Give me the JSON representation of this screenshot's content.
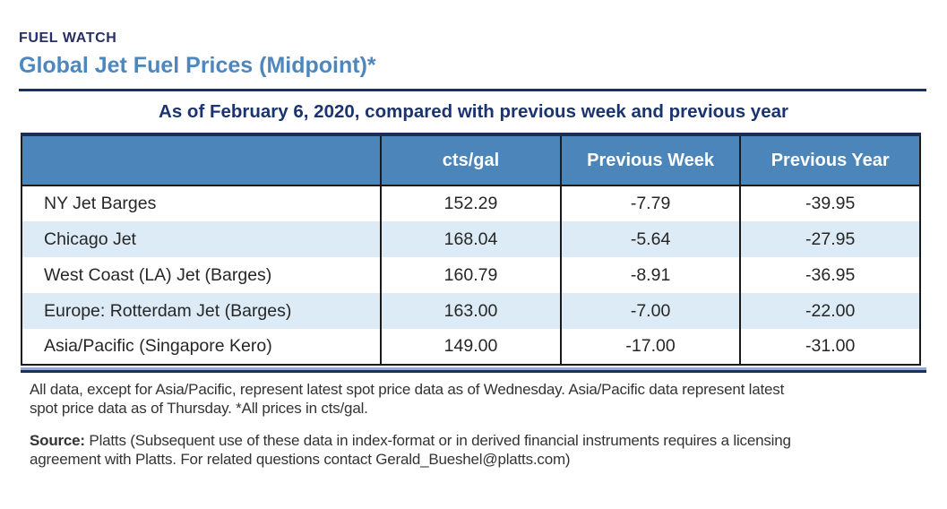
{
  "page": {
    "eyebrow": "FUEL WATCH",
    "title": "Global Jet Fuel Prices (Midpoint)*",
    "subtitle": "As of February 6, 2020, compared with previous week and previous year"
  },
  "table": {
    "columns": [
      "",
      "cts/gal",
      "Previous Week",
      "Previous Year"
    ],
    "rows": [
      {
        "label": "NY Jet Barges",
        "cts_gal": "152.29",
        "prev_week": "-7.79",
        "prev_year": "-39.95"
      },
      {
        "label": "Chicago Jet",
        "cts_gal": "168.04",
        "prev_week": "-5.64",
        "prev_year": "-27.95"
      },
      {
        "label": "West Coast (LA) Jet (Barges)",
        "cts_gal": "160.79",
        "prev_week": "-8.91",
        "prev_year": "-36.95"
      },
      {
        "label": "Europe: Rotterdam Jet (Barges)",
        "cts_gal": "163.00",
        "prev_week": "-7.00",
        "prev_year": "-22.00"
      },
      {
        "label": "Asia/Pacific (Singapore Kero)",
        "cts_gal": "149.00",
        "prev_week": "-17.00",
        "prev_year": "-31.00"
      }
    ]
  },
  "notes": {
    "footnote": "All data, except for Asia/Pacific, represent latest spot price data as of Wednesday. Asia/Pacific data represent latest\nspot price data as of Thursday. *All prices in cts/gal.",
    "source_label": "Source:",
    "source_text": " Platts (Subsequent use of these data in index-format or in derived financial instruments requires a licensing\nagreement with Platts. For related questions contact Gerald_Bueshel@platts.com)"
  },
  "colors": {
    "eyebrow_navy": "#282f63",
    "title_steel_blue": "#4d87bd",
    "subtitle_navy": "#1b3470",
    "header_bg": "#4c85ba",
    "header_text": "#ffffff",
    "stripe_light_blue": "#dcebf6",
    "rule_navy": "#1c2f63",
    "band_periwinkle": "#92a9d4",
    "table_border": "#1a1a1a",
    "body_text": "#262626",
    "note_text": "#333333"
  },
  "chart_data": {
    "type": "table",
    "title": "Global Jet Fuel Prices (Midpoint)*",
    "subtitle": "As of February 6, 2020, compared with previous week and previous year",
    "columns": [
      "",
      "cts/gal",
      "Previous Week",
      "Previous Year"
    ],
    "categories": [
      "NY Jet Barges",
      "Chicago Jet",
      "West Coast (LA) Jet (Barges)",
      "Europe: Rotterdam Jet (Barges)",
      "Asia/Pacific (Singapore Kero)"
    ],
    "series": [
      {
        "name": "cts/gal",
        "values": [
          152.29,
          168.04,
          160.79,
          163.0,
          149.0
        ]
      },
      {
        "name": "Previous Week",
        "values": [
          -7.79,
          -5.64,
          -8.91,
          -7.0,
          -17.0
        ]
      },
      {
        "name": "Previous Year",
        "values": [
          -39.95,
          -27.95,
          -36.95,
          -22.0,
          -31.0
        ]
      }
    ]
  }
}
